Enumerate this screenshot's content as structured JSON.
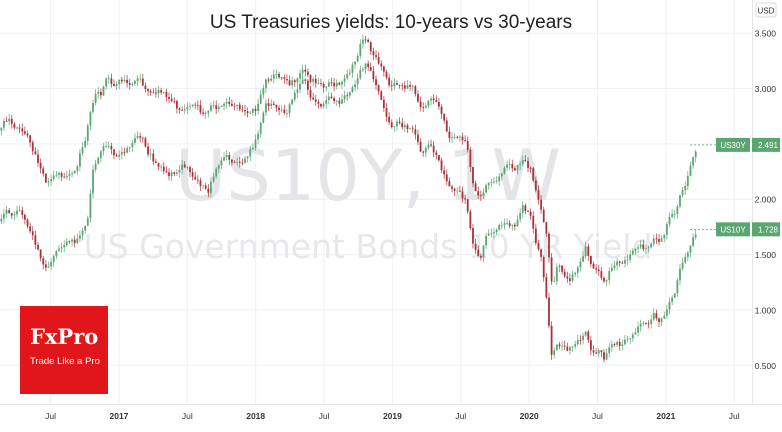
{
  "chart_data": {
    "type": "candlestick-line",
    "title": "US Treasuries yields: 10-years vs 30-years",
    "watermark_symbol": "US10Y, 1W",
    "watermark_description": "US Government Bonds 10 YR Yield",
    "currency_label": "USD",
    "y_ticks": [
      "3.500",
      "3.000",
      "2.500",
      "2.000",
      "1.500",
      "1.000",
      "0.500"
    ],
    "y_tick_values": [
      3.5,
      3.0,
      2.5,
      2.0,
      1.5,
      1.0,
      0.5
    ],
    "ylim": [
      0.15,
      3.8
    ],
    "x_ticks": [
      {
        "label": "Jul",
        "t": 2016.5
      },
      {
        "label": "2017",
        "t": 2017.0
      },
      {
        "label": "Jul",
        "t": 2017.5
      },
      {
        "label": "2018",
        "t": 2018.0
      },
      {
        "label": "Jul",
        "t": 2018.5
      },
      {
        "label": "2019",
        "t": 2019.0
      },
      {
        "label": "Jul",
        "t": 2019.5
      },
      {
        "label": "2020",
        "t": 2020.0
      },
      {
        "label": "Jul",
        "t": 2020.5
      },
      {
        "label": "2021",
        "t": 2021.0
      },
      {
        "label": "Jul",
        "t": 2021.5
      }
    ],
    "xlim": [
      2016.13,
      2021.63
    ],
    "grid": true,
    "series": [
      {
        "name": "US30Y",
        "last_value": "2.491",
        "last": 2.491,
        "color": "#5aa572",
        "points": [
          [
            2016.13,
            2.62
          ],
          [
            2016.2,
            2.72
          ],
          [
            2016.25,
            2.62
          ],
          [
            2016.3,
            2.64
          ],
          [
            2016.34,
            2.58
          ],
          [
            2016.4,
            2.4
          ],
          [
            2016.44,
            2.25
          ],
          [
            2016.48,
            2.12
          ],
          [
            2016.52,
            2.18
          ],
          [
            2016.58,
            2.22
          ],
          [
            2016.64,
            2.24
          ],
          [
            2016.7,
            2.3
          ],
          [
            2016.76,
            2.5
          ],
          [
            2016.8,
            2.78
          ],
          [
            2016.84,
            2.92
          ],
          [
            2016.88,
            2.96
          ],
          [
            2016.92,
            3.12
          ],
          [
            2016.96,
            3.05
          ],
          [
            2017.0,
            3.05
          ],
          [
            2017.05,
            3.06
          ],
          [
            2017.1,
            3.02
          ],
          [
            2017.16,
            3.12
          ],
          [
            2017.2,
            3.0
          ],
          [
            2017.3,
            2.98
          ],
          [
            2017.4,
            2.88
          ],
          [
            2017.46,
            2.82
          ],
          [
            2017.5,
            2.84
          ],
          [
            2017.56,
            2.9
          ],
          [
            2017.62,
            2.74
          ],
          [
            2017.68,
            2.82
          ],
          [
            2017.74,
            2.86
          ],
          [
            2017.8,
            2.9
          ],
          [
            2017.86,
            2.84
          ],
          [
            2017.92,
            2.78
          ],
          [
            2017.96,
            2.74
          ],
          [
            2018.0,
            2.8
          ],
          [
            2018.04,
            2.94
          ],
          [
            2018.08,
            3.08
          ],
          [
            2018.12,
            3.12
          ],
          [
            2018.2,
            3.08
          ],
          [
            2018.26,
            3.02
          ],
          [
            2018.3,
            3.1
          ],
          [
            2018.36,
            3.2
          ],
          [
            2018.42,
            3.06
          ],
          [
            2018.5,
            3.0
          ],
          [
            2018.56,
            3.04
          ],
          [
            2018.62,
            3.06
          ],
          [
            2018.66,
            3.1
          ],
          [
            2018.7,
            3.18
          ],
          [
            2018.74,
            3.22
          ],
          [
            2018.78,
            3.4
          ],
          [
            2018.82,
            3.44
          ],
          [
            2018.86,
            3.32
          ],
          [
            2018.9,
            3.28
          ],
          [
            2018.94,
            3.18
          ],
          [
            2019.0,
            3.0
          ],
          [
            2019.05,
            3.04
          ],
          [
            2019.1,
            2.98
          ],
          [
            2019.16,
            3.04
          ],
          [
            2019.22,
            2.82
          ],
          [
            2019.28,
            2.92
          ],
          [
            2019.34,
            2.84
          ],
          [
            2019.38,
            2.72
          ],
          [
            2019.42,
            2.56
          ],
          [
            2019.5,
            2.58
          ],
          [
            2019.55,
            2.54
          ],
          [
            2019.6,
            2.1
          ],
          [
            2019.65,
            1.98
          ],
          [
            2019.7,
            2.14
          ],
          [
            2019.78,
            2.2
          ],
          [
            2019.84,
            2.32
          ],
          [
            2019.9,
            2.24
          ],
          [
            2019.96,
            2.34
          ],
          [
            2020.02,
            2.3
          ],
          [
            2020.06,
            2.08
          ],
          [
            2020.1,
            1.92
          ],
          [
            2020.14,
            1.62
          ],
          [
            2020.18,
            1.18
          ],
          [
            2020.22,
            1.4
          ],
          [
            2020.26,
            1.3
          ],
          [
            2020.3,
            1.28
          ],
          [
            2020.36,
            1.38
          ],
          [
            2020.42,
            1.56
          ],
          [
            2020.46,
            1.4
          ],
          [
            2020.52,
            1.32
          ],
          [
            2020.56,
            1.22
          ],
          [
            2020.6,
            1.38
          ],
          [
            2020.66,
            1.46
          ],
          [
            2020.72,
            1.42
          ],
          [
            2020.76,
            1.5
          ],
          [
            2020.82,
            1.58
          ],
          [
            2020.88,
            1.56
          ],
          [
            2020.92,
            1.66
          ],
          [
            2020.96,
            1.64
          ],
          [
            2021.0,
            1.68
          ],
          [
            2021.04,
            1.82
          ],
          [
            2021.08,
            1.86
          ],
          [
            2021.12,
            2.06
          ],
          [
            2021.16,
            2.18
          ],
          [
            2021.2,
            2.35
          ],
          [
            2021.24,
            2.491
          ]
        ]
      },
      {
        "name": "US10Y",
        "last_value": "1.728",
        "last": 1.728,
        "color": "#5aa572",
        "points": [
          [
            2016.13,
            1.8
          ],
          [
            2016.18,
            1.92
          ],
          [
            2016.22,
            1.86
          ],
          [
            2016.26,
            1.9
          ],
          [
            2016.3,
            1.84
          ],
          [
            2016.36,
            1.7
          ],
          [
            2016.42,
            1.56
          ],
          [
            2016.46,
            1.4
          ],
          [
            2016.5,
            1.42
          ],
          [
            2016.56,
            1.54
          ],
          [
            2016.62,
            1.58
          ],
          [
            2016.68,
            1.62
          ],
          [
            2016.74,
            1.72
          ],
          [
            2016.78,
            1.84
          ],
          [
            2016.82,
            2.26
          ],
          [
            2016.86,
            2.36
          ],
          [
            2016.9,
            2.46
          ],
          [
            2016.96,
            2.44
          ],
          [
            2017.0,
            2.4
          ],
          [
            2017.06,
            2.46
          ],
          [
            2017.12,
            2.52
          ],
          [
            2017.18,
            2.56
          ],
          [
            2017.22,
            2.4
          ],
          [
            2017.3,
            2.32
          ],
          [
            2017.36,
            2.24
          ],
          [
            2017.42,
            2.2
          ],
          [
            2017.48,
            2.3
          ],
          [
            2017.54,
            2.24
          ],
          [
            2017.6,
            2.16
          ],
          [
            2017.66,
            2.08
          ],
          [
            2017.72,
            2.24
          ],
          [
            2017.78,
            2.38
          ],
          [
            2017.84,
            2.36
          ],
          [
            2017.9,
            2.34
          ],
          [
            2017.96,
            2.4
          ],
          [
            2018.0,
            2.48
          ],
          [
            2018.04,
            2.64
          ],
          [
            2018.08,
            2.84
          ],
          [
            2018.12,
            2.88
          ],
          [
            2018.18,
            2.84
          ],
          [
            2018.24,
            2.78
          ],
          [
            2018.3,
            2.96
          ],
          [
            2018.36,
            3.08
          ],
          [
            2018.42,
            2.92
          ],
          [
            2018.48,
            2.86
          ],
          [
            2018.56,
            2.9
          ],
          [
            2018.62,
            2.86
          ],
          [
            2018.68,
            2.96
          ],
          [
            2018.74,
            3.06
          ],
          [
            2018.78,
            3.2
          ],
          [
            2018.82,
            3.22
          ],
          [
            2018.86,
            3.12
          ],
          [
            2018.9,
            2.98
          ],
          [
            2018.95,
            2.8
          ],
          [
            2019.0,
            2.66
          ],
          [
            2019.05,
            2.72
          ],
          [
            2019.1,
            2.64
          ],
          [
            2019.16,
            2.62
          ],
          [
            2019.22,
            2.4
          ],
          [
            2019.28,
            2.52
          ],
          [
            2019.34,
            2.4
          ],
          [
            2019.38,
            2.24
          ],
          [
            2019.44,
            2.06
          ],
          [
            2019.5,
            2.06
          ],
          [
            2019.55,
            2.0
          ],
          [
            2019.6,
            1.6
          ],
          [
            2019.65,
            1.48
          ],
          [
            2019.7,
            1.68
          ],
          [
            2019.76,
            1.7
          ],
          [
            2019.84,
            1.82
          ],
          [
            2019.9,
            1.76
          ],
          [
            2019.96,
            1.92
          ],
          [
            2020.02,
            1.84
          ],
          [
            2020.06,
            1.58
          ],
          [
            2020.1,
            1.5
          ],
          [
            2020.14,
            1.08
          ],
          [
            2020.18,
            0.54
          ],
          [
            2020.2,
            0.72
          ],
          [
            2020.24,
            0.66
          ],
          [
            2020.3,
            0.62
          ],
          [
            2020.36,
            0.7
          ],
          [
            2020.42,
            0.84
          ],
          [
            2020.46,
            0.66
          ],
          [
            2020.52,
            0.62
          ],
          [
            2020.56,
            0.54
          ],
          [
            2020.6,
            0.66
          ],
          [
            2020.66,
            0.7
          ],
          [
            2020.72,
            0.74
          ],
          [
            2020.76,
            0.78
          ],
          [
            2020.82,
            0.86
          ],
          [
            2020.88,
            0.84
          ],
          [
            2020.92,
            0.94
          ],
          [
            2020.96,
            0.92
          ],
          [
            2021.0,
            0.96
          ],
          [
            2021.04,
            1.12
          ],
          [
            2021.08,
            1.16
          ],
          [
            2021.12,
            1.4
          ],
          [
            2021.16,
            1.46
          ],
          [
            2021.2,
            1.62
          ],
          [
            2021.24,
            1.728
          ]
        ]
      }
    ]
  },
  "logo": {
    "brand": "FxPro",
    "tagline": "Trade Like a Pro",
    "color": "#e0161b"
  },
  "colors": {
    "up": "#5aa572",
    "down": "#a8323a",
    "badge": "#5aa572",
    "grid": "#eef0f3",
    "axis_text": "#333333"
  }
}
